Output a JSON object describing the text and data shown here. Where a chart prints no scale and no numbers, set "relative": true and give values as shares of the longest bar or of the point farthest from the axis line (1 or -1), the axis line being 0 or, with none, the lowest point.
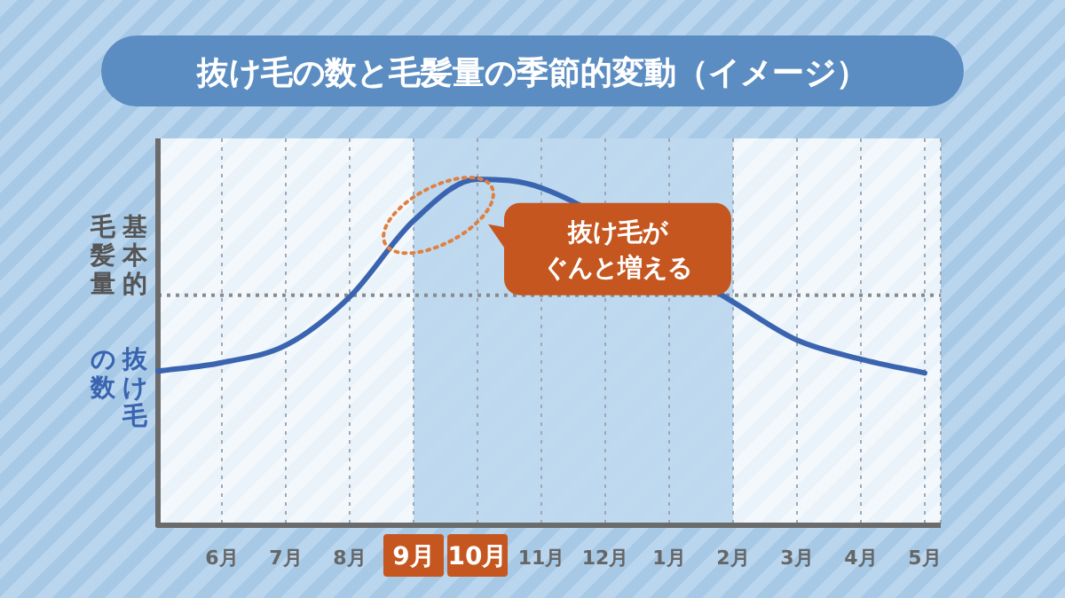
{
  "chart_data": {
    "type": "line",
    "title": "抜け毛の数と毛髪量の季節的変動（イメージ）",
    "relative": true,
    "categories": [
      null,
      "6月",
      "7月",
      "8月",
      "9月",
      "10月",
      "11月",
      "12月",
      "1月",
      "2月",
      "3月",
      "4月",
      "5月"
    ],
    "series": [
      {
        "name": "抜け毛の数",
        "color": "#3a64b0",
        "values": [
          0.445,
          0.47,
          0.52,
          0.66,
          0.88,
          1,
          0.975,
          null,
          null,
          0.645,
          0.535,
          0.48,
          0.44
        ]
      }
    ],
    "ref_lines": [
      {
        "axis": "y",
        "value": 0.665,
        "label": "基本的毛髪量",
        "color": "#8a8a8a",
        "line_style": "dotted"
      }
    ],
    "bands": [
      {
        "axis": "x",
        "from": "9月",
        "to": "2月",
        "color": "#b5d3ec"
      }
    ],
    "annotations": [
      "抜け毛がぐんと増える"
    ],
    "grid": "x",
    "legend": false,
    "marker": "none",
    "line_style": "solid"
  }
}
